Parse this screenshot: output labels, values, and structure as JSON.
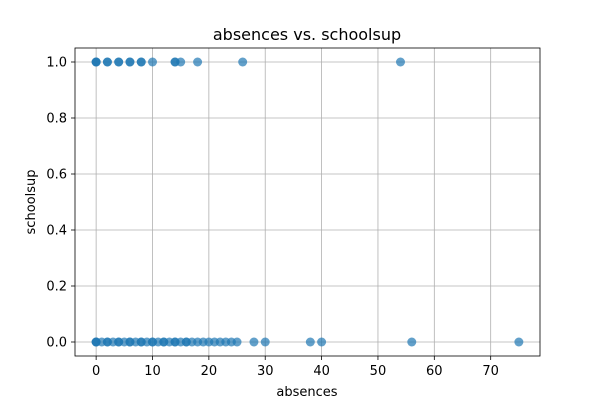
{
  "chart_data": {
    "type": "scatter",
    "title": "absences vs. schoolsup",
    "xlabel": "absences",
    "ylabel": "schoolsup",
    "xlim": [
      -3.75,
      78.75
    ],
    "ylim": [
      -0.05,
      1.05
    ],
    "xticks": [
      0,
      10,
      20,
      30,
      40,
      50,
      60,
      70
    ],
    "yticks": [
      0.0,
      0.2,
      0.4,
      0.6,
      0.8,
      1.0
    ],
    "ytick_labels": [
      "0.0",
      "0.2",
      "0.4",
      "0.6",
      "0.8",
      "1.0"
    ],
    "grid": true,
    "marker_color": "#1f77b4",
    "marker_alpha": 0.7,
    "series": [
      {
        "x": [
          0,
          0,
          0,
          2,
          2,
          4,
          4,
          6,
          6,
          8,
          8,
          10,
          14,
          14,
          15,
          18,
          26,
          54,
          0,
          0,
          0,
          1,
          2,
          2,
          3,
          4,
          4,
          5,
          6,
          6,
          7,
          8,
          8,
          9,
          10,
          10,
          11,
          12,
          12,
          13,
          14,
          14,
          15,
          16,
          16,
          17,
          18,
          19,
          20,
          21,
          22,
          23,
          24,
          25,
          28,
          30,
          38,
          40,
          56,
          75
        ],
        "y": [
          1,
          1,
          1,
          1,
          1,
          1,
          1,
          1,
          1,
          1,
          1,
          1,
          1,
          1,
          1,
          1,
          1,
          1,
          0,
          0,
          0,
          0,
          0,
          0,
          0,
          0,
          0,
          0,
          0,
          0,
          0,
          0,
          0,
          0,
          0,
          0,
          0,
          0,
          0,
          0,
          0,
          0,
          0,
          0,
          0,
          0,
          0,
          0,
          0,
          0,
          0,
          0,
          0,
          0,
          0,
          0,
          0,
          0,
          0,
          0
        ]
      }
    ]
  }
}
